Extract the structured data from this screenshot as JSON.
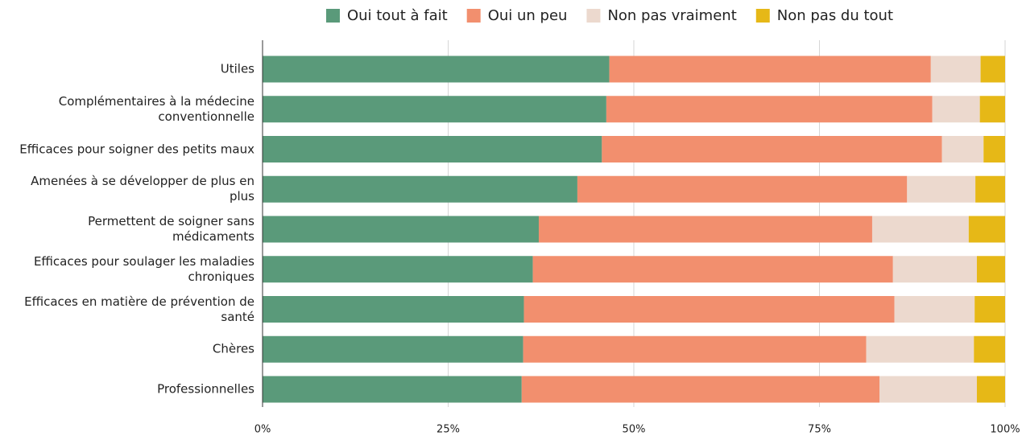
{
  "chart_data": {
    "type": "stacked_bar_horizontal",
    "categories": [
      "Utiles",
      "Complémentaires à la médecine conventionnelle",
      "Efficaces pour soigner des petits maux",
      "Amenées à se développer de plus en plus",
      "Permettent de soigner sans médicaments",
      "Efficaces pour soulager les maladies chroniques",
      "Efficaces en matière de prévention de santé",
      "Chères",
      "Professionnelles"
    ],
    "series": [
      {
        "name": "Oui tout à fait",
        "color": "#5a9a7a",
        "values": [
          46.7,
          46.3,
          45.7,
          42.4,
          37.2,
          36.4,
          35.2,
          35.1,
          34.9
        ]
      },
      {
        "name": "Oui un peu",
        "color": "#f28f6e",
        "values": [
          43.3,
          43.9,
          45.8,
          44.4,
          44.9,
          48.5,
          49.9,
          46.2,
          48.2
        ]
      },
      {
        "name": "Non pas vraiment",
        "color": "#ecd9ce",
        "values": [
          6.7,
          6.4,
          5.6,
          9.2,
          13.0,
          11.3,
          10.8,
          14.5,
          13.1
        ]
      },
      {
        "name": "Non pas du tout",
        "color": "#e6b817",
        "values": [
          3.3,
          3.4,
          2.9,
          4.0,
          4.9,
          3.8,
          4.1,
          4.2,
          3.8
        ]
      }
    ],
    "xlim": [
      0,
      100
    ],
    "xticks": [
      {
        "value": 0,
        "label": "0%"
      },
      {
        "value": 25,
        "label": "25%"
      },
      {
        "value": 50,
        "label": "50%"
      },
      {
        "value": 75,
        "label": "75%"
      },
      {
        "value": 100,
        "label": "100%"
      }
    ],
    "grid": true,
    "legend": "top"
  }
}
